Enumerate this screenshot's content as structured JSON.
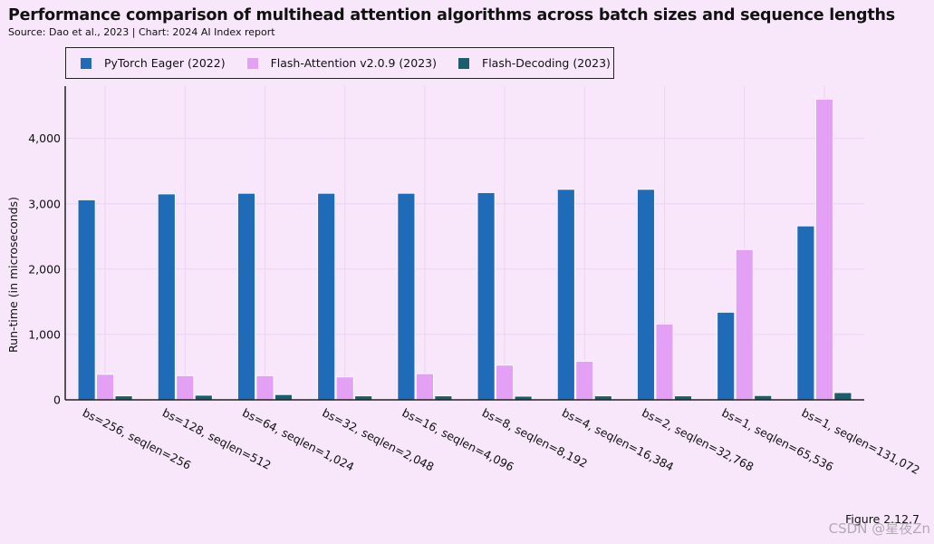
{
  "title": "Performance comparison of multihead attention algorithms across batch sizes and sequence lengths",
  "subtitle": "Source: Dao et al., 2023 | Chart: 2024 AI Index report",
  "figure_label": "Figure 2.12.7",
  "watermark": "CSDN @星夜Zn",
  "colors": {
    "background": "#f8e6fb",
    "pytorch": "#1f6bb8",
    "flash_attention": "#e3a0f5",
    "flash_decoding": "#1a5e6e"
  },
  "chart_data": {
    "type": "bar",
    "title": "Performance comparison of multihead attention algorithms across batch sizes and sequence lengths",
    "xlabel": "",
    "ylabel": "Run-time (in microseconds)",
    "ylim": [
      0,
      4800
    ],
    "yticks": [
      0,
      1000,
      2000,
      3000,
      4000
    ],
    "ytick_labels": [
      "0",
      "1,000",
      "2,000",
      "3,000",
      "4,000"
    ],
    "grid": true,
    "legend_position": "top-left",
    "categories": [
      "bs=256, seqlen=256",
      "bs=128, seqlen=512",
      "bs=64, seqlen=1,024",
      "bs=32, seqlen=2,048",
      "bs=16, seqlen=4,096",
      "bs=8, seqlen=8,192",
      "bs=4, seqlen=16,384",
      "bs=2, seqlen=32,768",
      "bs=1, seqlen=65,536",
      "bs=1, seqlen=131,072"
    ],
    "series": [
      {
        "name": "PyTorch Eager (2022)",
        "color": "#1f6bb8",
        "values": [
          3060,
          3150,
          3160,
          3160,
          3160,
          3170,
          3220,
          3220,
          1340,
          2660
        ]
      },
      {
        "name": "Flash-Attention v2.0.9 (2023)",
        "color": "#e3a0f5",
        "values": [
          390,
          370,
          370,
          350,
          400,
          530,
          590,
          1160,
          2300,
          4600
        ]
      },
      {
        "name": "Flash-Decoding (2023)",
        "color": "#1a5e6e",
        "values": [
          60,
          70,
          80,
          60,
          60,
          55,
          60,
          60,
          65,
          110
        ]
      }
    ]
  }
}
